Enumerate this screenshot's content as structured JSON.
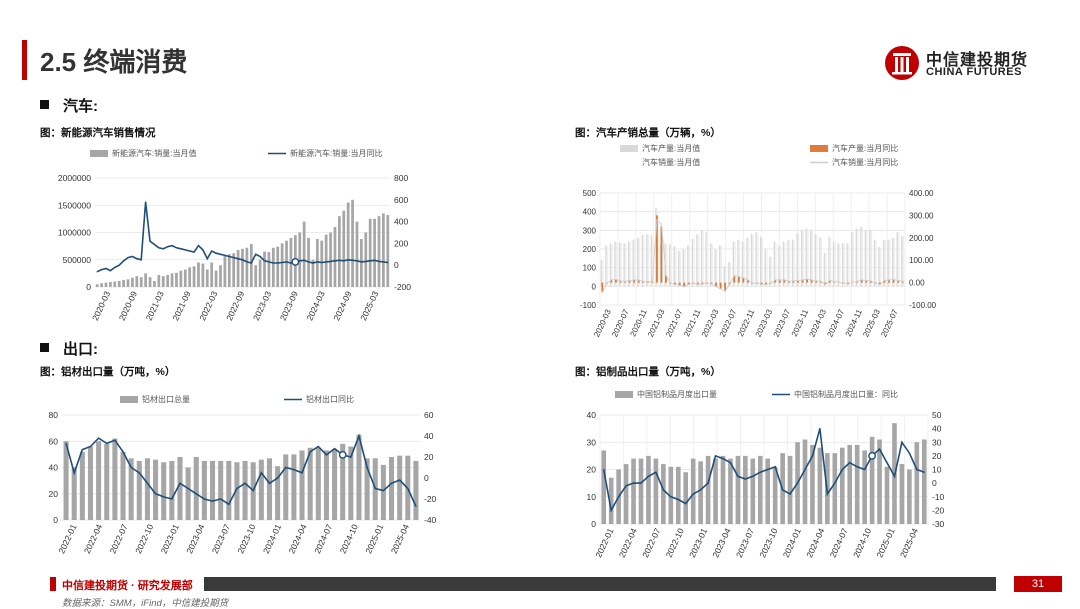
{
  "header": {
    "title": "2.5 终端消费",
    "logo_cn": "中信建投期货",
    "logo_en": "CHINA FUTURES",
    "brand_color": "#c00000"
  },
  "sections": {
    "auto": "汽车:",
    "export": "出口:"
  },
  "footer": {
    "org": "中信建投期货 · 研究发展部",
    "page": "31",
    "source": "数据来源：SMM，iFind，中信建投期货"
  },
  "chart_data": [
    {
      "id": "nev",
      "type": "bar+line",
      "title": "图：新能源汽车销售情况",
      "legend": [
        "新能源汽车:销量:当月值",
        "新能源汽车:销量:当月同比"
      ],
      "xlabels": [
        "2020-03",
        "2020-09",
        "2021-03",
        "2021-09",
        "2022-03",
        "2022-09",
        "2023-03",
        "2023-09",
        "2024-03",
        "2024-09",
        "2025-03"
      ],
      "left_ticks": [
        "2000000",
        "1500000",
        "1000000",
        "500000",
        "0"
      ],
      "right_ticks": [
        "800",
        "600",
        "400",
        "200",
        "0",
        "-200"
      ],
      "yleft": [
        0,
        2000000
      ],
      "yright": [
        -200,
        800
      ],
      "bar_values": [
        50000,
        70000,
        80000,
        90000,
        100000,
        110000,
        130000,
        140000,
        170000,
        200000,
        180000,
        250000,
        180000,
        110000,
        220000,
        200000,
        220000,
        250000,
        260000,
        300000,
        320000,
        360000,
        380000,
        450000,
        430000,
        320000,
        450000,
        300000,
        400000,
        570000,
        600000,
        620000,
        680000,
        700000,
        720000,
        790000,
        400000,
        500000,
        650000,
        640000,
        720000,
        740000,
        800000,
        850000,
        900000,
        950000,
        1000000,
        1200000,
        900000,
        500000,
        880000,
        850000,
        960000,
        1000000,
        1100000,
        1300000,
        1400000,
        1550000,
        1600000,
        1200000,
        880000,
        1000000,
        1250000,
        1250000,
        1300000,
        1350000,
        1320000
      ],
      "line_values": [
        -60,
        -40,
        -30,
        -50,
        -20,
        0,
        40,
        70,
        80,
        60,
        50,
        580,
        220,
        190,
        160,
        150,
        170,
        180,
        160,
        150,
        140,
        130,
        120,
        180,
        140,
        60,
        130,
        110,
        100,
        90,
        80,
        70,
        60,
        50,
        30,
        20,
        100,
        80,
        40,
        30,
        20,
        20,
        25,
        30,
        20,
        30,
        40,
        45,
        30,
        20,
        30,
        25,
        30,
        35,
        40,
        45,
        40,
        50,
        45,
        40,
        30,
        35,
        40,
        45,
        35,
        30,
        25
      ],
      "line_marker_index": 45
    },
    {
      "id": "auto",
      "type": "bar+line",
      "title": "图：汽车产销总量（万辆，%）",
      "legend": [
        "汽车产量:当月值",
        "汽车产量:当月同比",
        "汽车销量:当月值",
        "汽车销量:当月同比"
      ],
      "xlabels": [
        "2020-03",
        "2020-07",
        "2020-11",
        "2021-03",
        "2021-07",
        "2021-11",
        "2022-03",
        "2022-07",
        "2022-11",
        "2023-03",
        "2023-07",
        "2023-11",
        "2024-03",
        "2024-07",
        "2024-11",
        "2025-03",
        "2025-07"
      ],
      "left_ticks": [
        "500",
        "400",
        "300",
        "200",
        "100",
        "0",
        "-100"
      ],
      "right_ticks": [
        "400.00",
        "300.00",
        "200.00",
        "100.00",
        "0.00",
        "-100.00"
      ],
      "yleft": [
        -100,
        500
      ],
      "yright": [
        -100,
        400
      ],
      "prod_values": [
        140,
        220,
        230,
        240,
        235,
        230,
        240,
        250,
        260,
        275,
        280,
        275,
        420,
        220,
        230,
        225,
        215,
        190,
        200,
        220,
        255,
        280,
        300,
        290,
        230,
        200,
        220,
        110,
        130,
        240,
        250,
        240,
        260,
        280,
        290,
        265,
        200,
        160,
        240,
        220,
        240,
        250,
        250,
        285,
        300,
        310,
        300,
        280,
        260,
        180,
        265,
        240,
        230,
        230,
        230,
        290,
        310,
        320,
        300,
        300,
        250,
        210,
        250,
        250,
        260,
        290,
        270
      ],
      "prod_yoy": [
        -40,
        -5,
        10,
        12,
        5,
        4,
        10,
        11,
        10,
        5,
        4,
        5,
        300,
        250,
        30,
        -5,
        -10,
        -15,
        -20,
        -10,
        -5,
        -10,
        -8,
        -5,
        -8,
        -20,
        -30,
        -40,
        -10,
        30,
        25,
        20,
        10,
        -5,
        -5,
        -10,
        -10,
        -5,
        10,
        10,
        10,
        5,
        6,
        8,
        10,
        15,
        10,
        6,
        4,
        -10,
        8,
        2,
        0,
        -5,
        -8,
        0,
        5,
        10,
        8,
        6,
        -6,
        -10,
        8,
        10,
        12,
        8,
        5
      ],
      "sales_values": [
        145,
        215,
        225,
        235,
        230,
        228,
        238,
        252,
        258,
        272,
        278,
        272,
        410,
        215,
        228,
        222,
        212,
        188,
        198,
        218,
        252,
        278,
        298,
        288,
        228,
        198,
        218,
        108,
        128,
        238,
        248,
        238,
        258,
        278,
        288,
        262,
        198,
        158,
        238,
        218,
        238,
        248,
        248,
        282,
        298,
        308,
        298,
        278,
        258,
        178,
        262,
        238,
        228,
        228,
        228,
        288,
        308,
        318,
        298,
        298,
        248,
        208,
        248,
        248,
        258,
        288,
        268
      ],
      "sales_yoy": [
        -45,
        -3,
        12,
        14,
        7,
        5,
        9,
        12,
        11,
        6,
        5,
        6,
        280,
        260,
        32,
        -3,
        -8,
        -12,
        -18,
        -8,
        -3,
        -8,
        -6,
        -3,
        -6,
        -18,
        -28,
        -38,
        -8,
        32,
        27,
        22,
        12,
        -3,
        -3,
        -8,
        -8,
        -3,
        12,
        12,
        12,
        6,
        8,
        10,
        12,
        16,
        12,
        8,
        6,
        -8,
        10,
        4,
        2,
        -3,
        -6,
        2,
        6,
        12,
        10,
        8,
        -4,
        -8,
        10,
        12,
        14,
        10,
        6
      ]
    },
    {
      "id": "al_export",
      "type": "bar+line",
      "title": "图：铝材出口量（万吨，%）",
      "legend": [
        "铝材出口总量",
        "铝材出口同比"
      ],
      "xlabels": [
        "2022-01",
        "2022-04",
        "2022-07",
        "2022-10",
        "2023-01",
        "2023-04",
        "2023-07",
        "2023-10",
        "2024-01",
        "2024-04",
        "2024-07",
        "2024-10",
        "2025-01",
        "2025-04"
      ],
      "left_ticks": [
        "80",
        "60",
        "40",
        "20",
        "0"
      ],
      "right_ticks": [
        "60",
        "40",
        "20",
        "0",
        "-20",
        "-40"
      ],
      "yleft": [
        0,
        80
      ],
      "yright": [
        -40,
        60
      ],
      "bar_values": [
        60,
        40,
        52,
        56,
        60,
        58,
        62,
        52,
        47,
        45,
        47,
        46,
        44,
        45,
        48,
        40,
        48,
        45,
        45,
        45,
        45,
        44,
        45,
        44,
        46,
        47,
        41,
        50,
        50,
        53,
        55,
        55,
        53,
        54,
        58,
        56,
        65,
        47,
        47,
        42,
        48,
        49,
        49,
        45
      ],
      "line_values": [
        33,
        5,
        27,
        30,
        38,
        33,
        36,
        25,
        10,
        5,
        -5,
        -15,
        -18,
        -20,
        -5,
        -10,
        -15,
        -20,
        -22,
        -20,
        -25,
        -10,
        -5,
        -12,
        5,
        -5,
        0,
        10,
        8,
        5,
        25,
        30,
        22,
        28,
        22,
        20,
        40,
        10,
        -10,
        -12,
        -5,
        -2,
        -10,
        -27
      ],
      "line_marker_index": 34
    },
    {
      "id": "al_products",
      "type": "bar+line",
      "title": "图：铝制品出口量（万吨，%）",
      "legend": [
        "中国铝制品月度出口量",
        "中国铝制品月度出口量：同比"
      ],
      "xlabels": [
        "2022-01",
        "2022-04",
        "2022-07",
        "2022-10",
        "2023-01",
        "2023-04",
        "2023-07",
        "2023-10",
        "2024-01",
        "2024-04",
        "2024-07",
        "2024-10",
        "2025-01",
        "2025-04"
      ],
      "left_ticks": [
        "40",
        "30",
        "20",
        "10",
        "0"
      ],
      "right_ticks": [
        "50",
        "40",
        "30",
        "20",
        "10",
        "0",
        "-10",
        "-20",
        "-30"
      ],
      "yleft": [
        0,
        40
      ],
      "yright": [
        -30,
        50
      ],
      "bar_values": [
        27,
        17,
        20,
        22,
        24,
        24,
        25,
        24,
        22,
        21,
        21,
        19,
        24,
        23,
        25,
        24,
        25,
        24,
        25,
        25,
        24,
        25,
        24,
        21,
        26,
        25,
        30,
        31,
        29,
        28,
        26,
        26,
        28,
        29,
        29,
        27,
        32,
        31,
        21,
        37,
        22,
        20,
        30,
        31
      ],
      "line_values": [
        10,
        -20,
        -10,
        -2,
        0,
        0,
        5,
        8,
        -5,
        -10,
        -12,
        -15,
        -8,
        -5,
        0,
        20,
        18,
        15,
        5,
        3,
        5,
        8,
        10,
        12,
        -5,
        -8,
        0,
        10,
        20,
        40,
        -8,
        0,
        10,
        15,
        12,
        10,
        20,
        25,
        15,
        5,
        30,
        22,
        10,
        8
      ],
      "line_marker_index": 36
    }
  ]
}
